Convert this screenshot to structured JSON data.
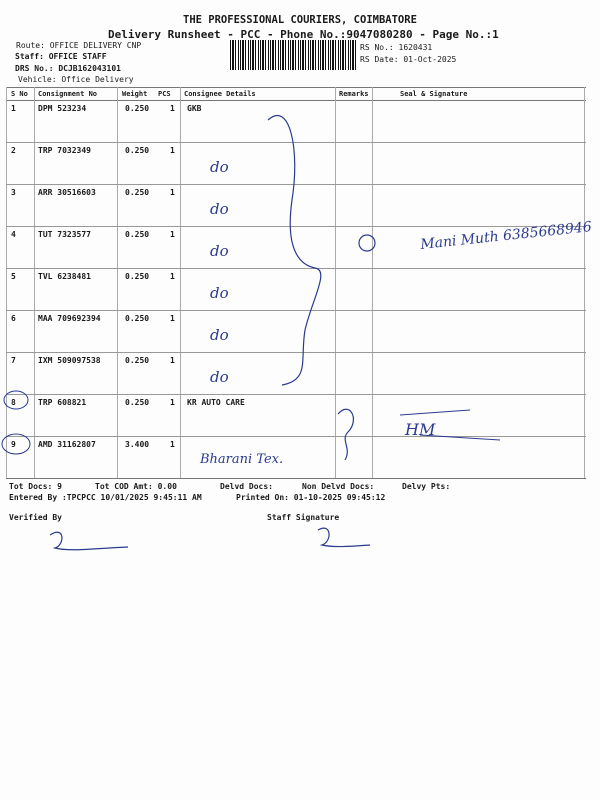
{
  "header": {
    "company": "THE PROFESSIONAL COURIERS, COIMBATORE",
    "subtitle": "Delivery Runsheet - PCC - Phone No.:9047080280 - Page No.:1",
    "route": "Route: OFFICE DELIVERY CNP",
    "staff": "Staff: OFFICE STAFF",
    "drs": "DRS No.: DCJB162043101",
    "vehicle": "Vehicle: Office Delivery",
    "rs_no": "RS No.: 1620431",
    "rs_date": "RS Date: 01-Oct-2025"
  },
  "table": {
    "columns": [
      "S No",
      "Consignment No",
      "Weight",
      "PCS",
      "Consignee Details",
      "Remarks",
      "Seal & Signature"
    ],
    "rows": [
      {
        "sno": "1",
        "cn": "DPM 523234",
        "weight": "0.250",
        "pcs": "1",
        "consignee": "GKB",
        "hand": ""
      },
      {
        "sno": "2",
        "cn": "TRP 7032349",
        "weight": "0.250",
        "pcs": "1",
        "consignee": "",
        "hand": "do"
      },
      {
        "sno": "3",
        "cn": "ARR 30516603",
        "weight": "0.250",
        "pcs": "1",
        "consignee": "",
        "hand": "do"
      },
      {
        "sno": "4",
        "cn": "TUT 7323577",
        "weight": "0.250",
        "pcs": "1",
        "consignee": "",
        "hand": "do"
      },
      {
        "sno": "5",
        "cn": "TVL 6238481",
        "weight": "0.250",
        "pcs": "1",
        "consignee": "",
        "hand": "do"
      },
      {
        "sno": "6",
        "cn": "MAA 709692394",
        "weight": "0.250",
        "pcs": "1",
        "consignee": "",
        "hand": "do"
      },
      {
        "sno": "7",
        "cn": "IXM 509097538",
        "weight": "0.250",
        "pcs": "1",
        "consignee": "",
        "hand": "do"
      },
      {
        "sno": "8",
        "cn": "TRP 608821",
        "weight": "0.250",
        "pcs": "1",
        "consignee": "KR AUTO CARE",
        "hand": ""
      },
      {
        "sno": "9",
        "cn": "AMD 31162807",
        "weight": "3.400",
        "pcs": "1",
        "consignee": "",
        "hand": "Bharani Tex."
      }
    ],
    "handwritten_signature": "Mani Muth 6385668946"
  },
  "footer": {
    "tot_docs": "Tot Docs:   9",
    "tot_cod": "Tot COD Amt:    0.00",
    "delvd": "Delvd Docs:",
    "non_delvd": "Non Delvd Docs:",
    "delvy_pts": "Delvy Pts:",
    "entered_by": "Entered By :TPCPCC 10/01/2025 9:45:11 AM",
    "printed_on": "Printed On: 01-10-2025 09:45:12",
    "verified_by": "Verified By",
    "staff_signature": "Staff Signature"
  },
  "colors": {
    "ink": "#2b3a8f",
    "print": "#1a1a1a"
  }
}
